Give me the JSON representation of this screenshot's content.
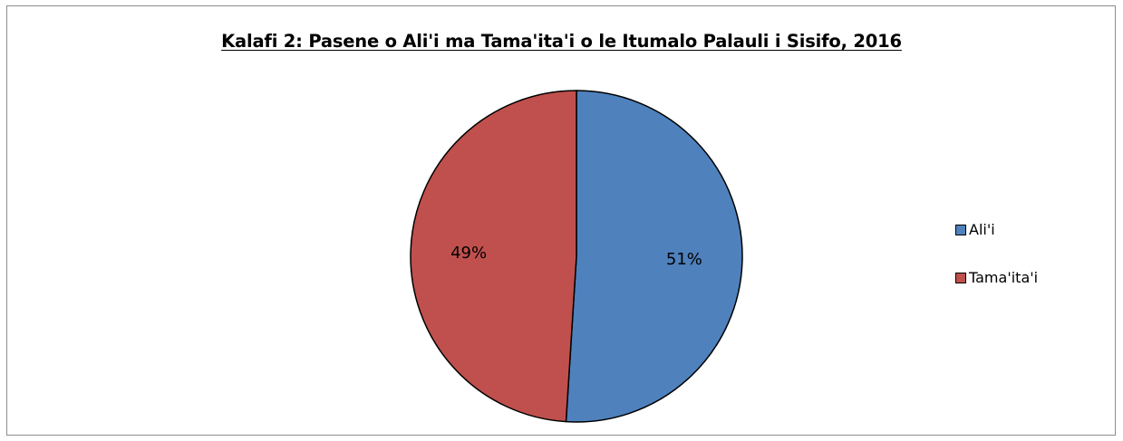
{
  "chart_data": {
    "type": "pie",
    "title": "Kalafi 2: Pasene o Ali'i ma Tama'ita'i o le Itumalo Palauli i Sisifo, 2016",
    "categories": [
      "Ali'i",
      "Tama'ita'i"
    ],
    "values": [
      51,
      49
    ],
    "labels": [
      "51%",
      "49%"
    ],
    "colors": [
      "#4f81bd",
      "#c0504d"
    ],
    "start_angle_deg": 0,
    "direction": "clockwise",
    "legend_position": "right"
  }
}
